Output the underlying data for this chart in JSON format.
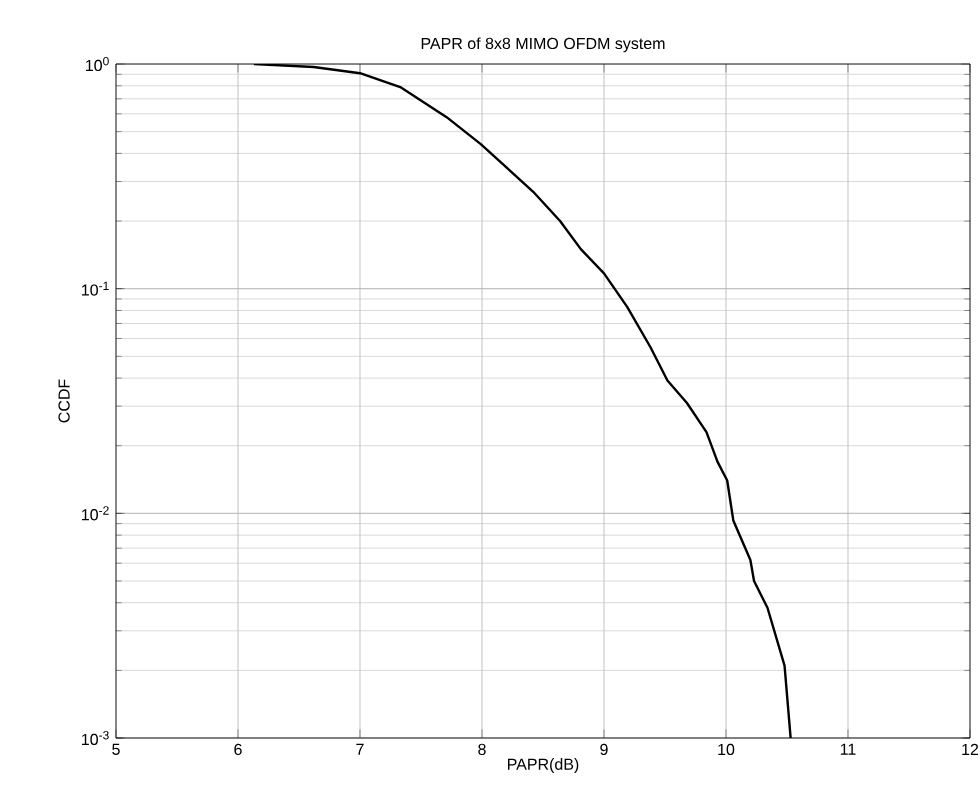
{
  "chart_data": {
    "type": "line",
    "title": "PAPR of 8x8 MIMO OFDM system",
    "xlabel": "PAPR(dB)",
    "ylabel": "CCDF",
    "log": "y",
    "grid": true,
    "marker": "none",
    "line_style": "solid",
    "xlim": [
      5,
      12
    ],
    "xticks": [
      5,
      6,
      7,
      8,
      9,
      10,
      11,
      12
    ],
    "ylim": [
      0.001,
      1
    ],
    "yticks": [
      {
        "value": 0.001,
        "label": "10$^{-3}$"
      },
      {
        "value": 0.01,
        "label": "10$^{-2}$"
      },
      {
        "value": 0.1,
        "label": "10$^{-1}$"
      },
      {
        "value": 1,
        "label": "10$^{0}$"
      }
    ],
    "series": [
      {
        "color": "#000000",
        "x": [
          6.13,
          6.62,
          7.0,
          7.33,
          7.71,
          7.99,
          8.42,
          8.64,
          8.81,
          9.0,
          9.19,
          9.38,
          9.52,
          9.68,
          9.84,
          9.93,
          10.01,
          10.06,
          10.2,
          10.23,
          10.34,
          10.48,
          10.53
        ],
        "values": [
          1,
          0.97,
          0.91,
          0.79,
          0.58,
          0.44,
          0.27,
          0.2,
          0.15,
          0.117,
          0.083,
          0.055,
          0.039,
          0.031,
          0.023,
          0.017,
          0.014,
          0.0093,
          0.0062,
          0.005,
          0.0038,
          0.0021,
          0.001
        ]
      }
    ]
  }
}
